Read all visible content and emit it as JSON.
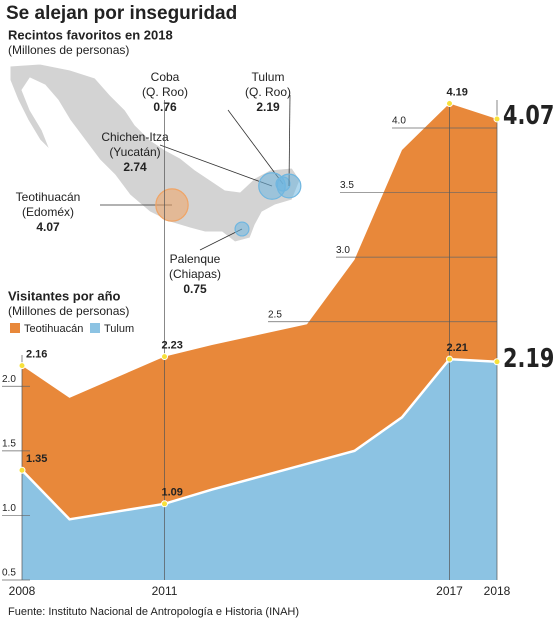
{
  "title": "Se alejan por inseguridad",
  "map": {
    "subtitle": "Recintos favoritos en 2018",
    "unit": "(Millones de personas)",
    "color": "#d3d3d3",
    "sites": [
      {
        "name": "Coba",
        "state": "(Q. Roo)",
        "value": 0.76,
        "color": "#6fb6e0"
      },
      {
        "name": "Tulum",
        "state": "(Q. Roo)",
        "value": 2.19,
        "color": "#6fb6e0"
      },
      {
        "name": "Chichen-Itza",
        "state": "(Yucatán)",
        "value": 2.74,
        "color": "#6fb6e0"
      },
      {
        "name": "Teotihuacán",
        "state": "(Edoméx)",
        "value": 4.07,
        "color": "#f0a465"
      },
      {
        "name": "Palenque",
        "state": "(Chiapas)",
        "value": 0.75,
        "color": "#6fb6e0"
      }
    ]
  },
  "chart_data": {
    "type": "area",
    "title": "Visitantes por año",
    "subtitle": "(Millones de personas)",
    "x": [
      2008,
      2009,
      2010,
      2011,
      2012,
      2013,
      2014,
      2015,
      2016,
      2017,
      2018
    ],
    "series": [
      {
        "name": "Teotihuacán",
        "color": "#e8883a",
        "values": [
          2.16,
          1.91,
          2.07,
          2.23,
          2.32,
          2.4,
          2.48,
          2.98,
          3.83,
          4.19,
          4.07
        ]
      },
      {
        "name": "Tulum",
        "color": "#8cc3e3",
        "values": [
          1.35,
          0.97,
          1.03,
          1.09,
          1.2,
          1.3,
          1.4,
          1.5,
          1.76,
          2.21,
          2.19
        ]
      }
    ],
    "xlim": [
      2008,
      2018
    ],
    "xticks": [
      2008,
      2011,
      2017,
      2018
    ],
    "ylim": [
      0.5,
      4.3
    ],
    "yticks": [
      0.5,
      {
        "value": 1,
        "label": "1.0"
      },
      1.5,
      {
        "value": 2,
        "label": "2.0"
      },
      2.5,
      {
        "value": 3,
        "label": "3.0"
      },
      3.5,
      {
        "value": 4,
        "label": "4.0"
      }
    ],
    "grid": true
  },
  "source": "Fuente: Instituto Nacional de Antropología e Historia (INAH)"
}
